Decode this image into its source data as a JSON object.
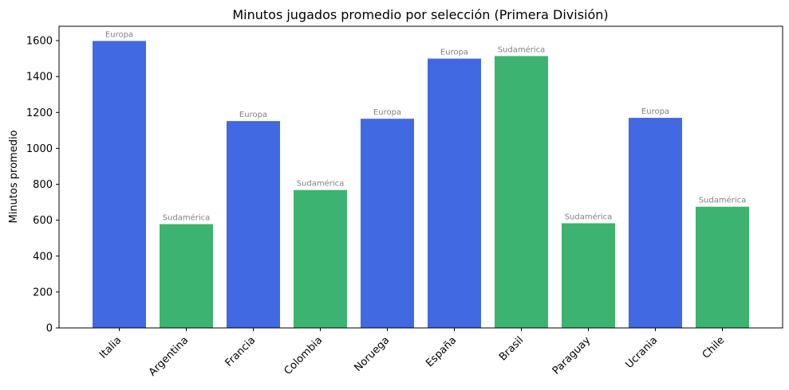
{
  "chart_data": {
    "type": "bar",
    "title": "Minutos jugados promedio por selección (Primera División)",
    "xlabel": "",
    "ylabel": "Minutos promedio",
    "ylim": [
      0,
      1680
    ],
    "yticks": [
      0,
      200,
      400,
      600,
      800,
      1000,
      1200,
      1400,
      1600
    ],
    "categories": [
      "Italia",
      "Argentina",
      "Francia",
      "Colombia",
      "Noruega",
      "España",
      "Brasil",
      "Paraguay",
      "Ucrania",
      "Chile"
    ],
    "values": [
      1598,
      578,
      1152,
      768,
      1165,
      1500,
      1514,
      583,
      1170,
      675
    ],
    "groups": [
      "Europa",
      "Sudamérica",
      "Europa",
      "Sudamérica",
      "Europa",
      "Europa",
      "Sudamérica",
      "Sudamérica",
      "Europa",
      "Sudamérica"
    ],
    "group_colors": {
      "Europa": "#4169e1",
      "Sudamérica": "#3cb371"
    },
    "grid": false,
    "legend": "none"
  }
}
